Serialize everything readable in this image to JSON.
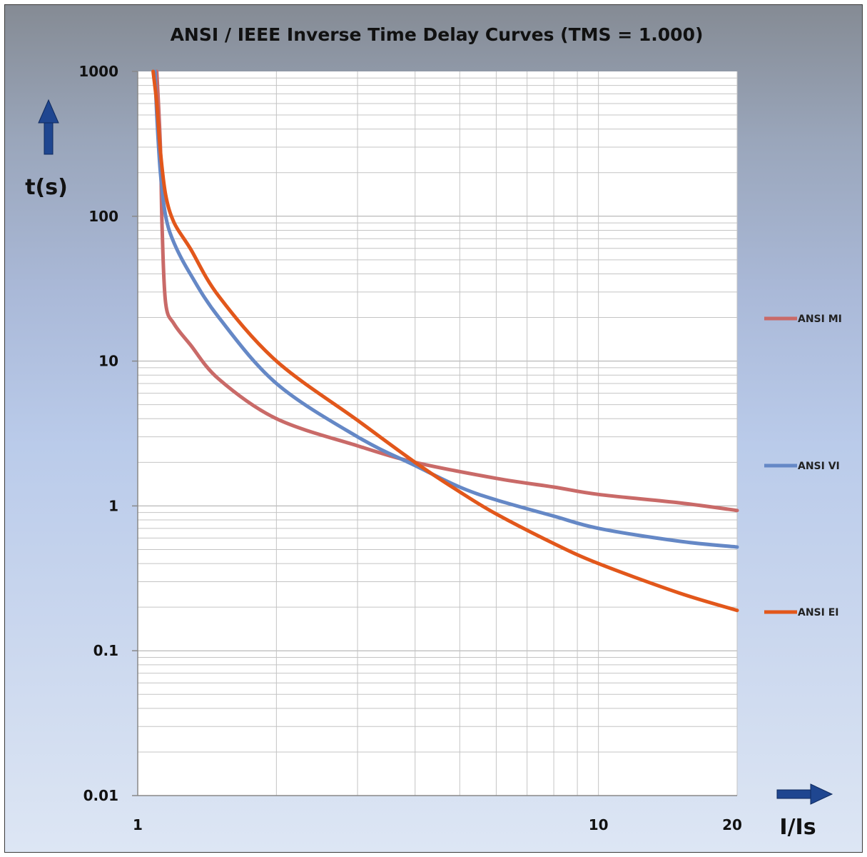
{
  "chart_data": {
    "type": "line",
    "title": "ANSI / IEEE Inverse Time Delay Curves (TMS = 1.000)",
    "xlabel": "I/Is",
    "ylabel": "t(s)",
    "x_scale": "log",
    "y_scale": "log",
    "xlim": [
      1,
      20
    ],
    "ylim": [
      0.01,
      1000
    ],
    "x_ticks": [
      {
        "value": 1,
        "label": "1"
      },
      {
        "value": 10,
        "label": "10"
      },
      {
        "value": 20,
        "label": "20"
      }
    ],
    "y_ticks": [
      {
        "value": 1000,
        "label": "1000"
      },
      {
        "value": 100,
        "label": "100"
      },
      {
        "value": 10,
        "label": "10"
      },
      {
        "value": 1,
        "label": "1"
      },
      {
        "value": 0.1,
        "label": "0.1"
      },
      {
        "value": 0.01,
        "label": "0.01"
      }
    ],
    "grid": true,
    "legend_position": "right",
    "series": [
      {
        "name": "ANSI MI",
        "color": "#c96a68",
        "points": [
          [
            1.1,
            1000
          ],
          [
            1.12,
            300
          ],
          [
            1.13,
            80
          ],
          [
            1.15,
            25
          ],
          [
            1.2,
            18
          ],
          [
            1.3,
            13
          ],
          [
            1.5,
            7.5
          ],
          [
            2.0,
            4.0
          ],
          [
            3.0,
            2.6
          ],
          [
            4.0,
            2.0
          ],
          [
            6.0,
            1.55
          ],
          [
            8.0,
            1.35
          ],
          [
            10.0,
            1.2
          ],
          [
            15.0,
            1.05
          ],
          [
            20.0,
            0.93
          ]
        ]
      },
      {
        "name": "ANSI VI",
        "color": "#6588c6",
        "points": [
          [
            1.09,
            1000
          ],
          [
            1.1,
            500
          ],
          [
            1.12,
            200
          ],
          [
            1.15,
            100
          ],
          [
            1.2,
            65
          ],
          [
            1.3,
            40
          ],
          [
            1.5,
            20
          ],
          [
            2.0,
            7.0
          ],
          [
            3.0,
            3.0
          ],
          [
            4.0,
            1.9
          ],
          [
            5.0,
            1.35
          ],
          [
            6.0,
            1.1
          ],
          [
            8.0,
            0.85
          ],
          [
            10.0,
            0.7
          ],
          [
            15.0,
            0.57
          ],
          [
            20.0,
            0.52
          ]
        ]
      },
      {
        "name": "ANSI EI",
        "color": "#e2571b",
        "points": [
          [
            1.08,
            1000
          ],
          [
            1.1,
            600
          ],
          [
            1.12,
            280
          ],
          [
            1.15,
            140
          ],
          [
            1.2,
            90
          ],
          [
            1.3,
            60
          ],
          [
            1.5,
            28
          ],
          [
            2.0,
            10.0
          ],
          [
            3.0,
            3.9
          ],
          [
            4.0,
            2.0
          ],
          [
            5.0,
            1.25
          ],
          [
            6.0,
            0.88
          ],
          [
            8.0,
            0.55
          ],
          [
            10.0,
            0.4
          ],
          [
            15.0,
            0.25
          ],
          [
            20.0,
            0.19
          ]
        ]
      }
    ]
  }
}
